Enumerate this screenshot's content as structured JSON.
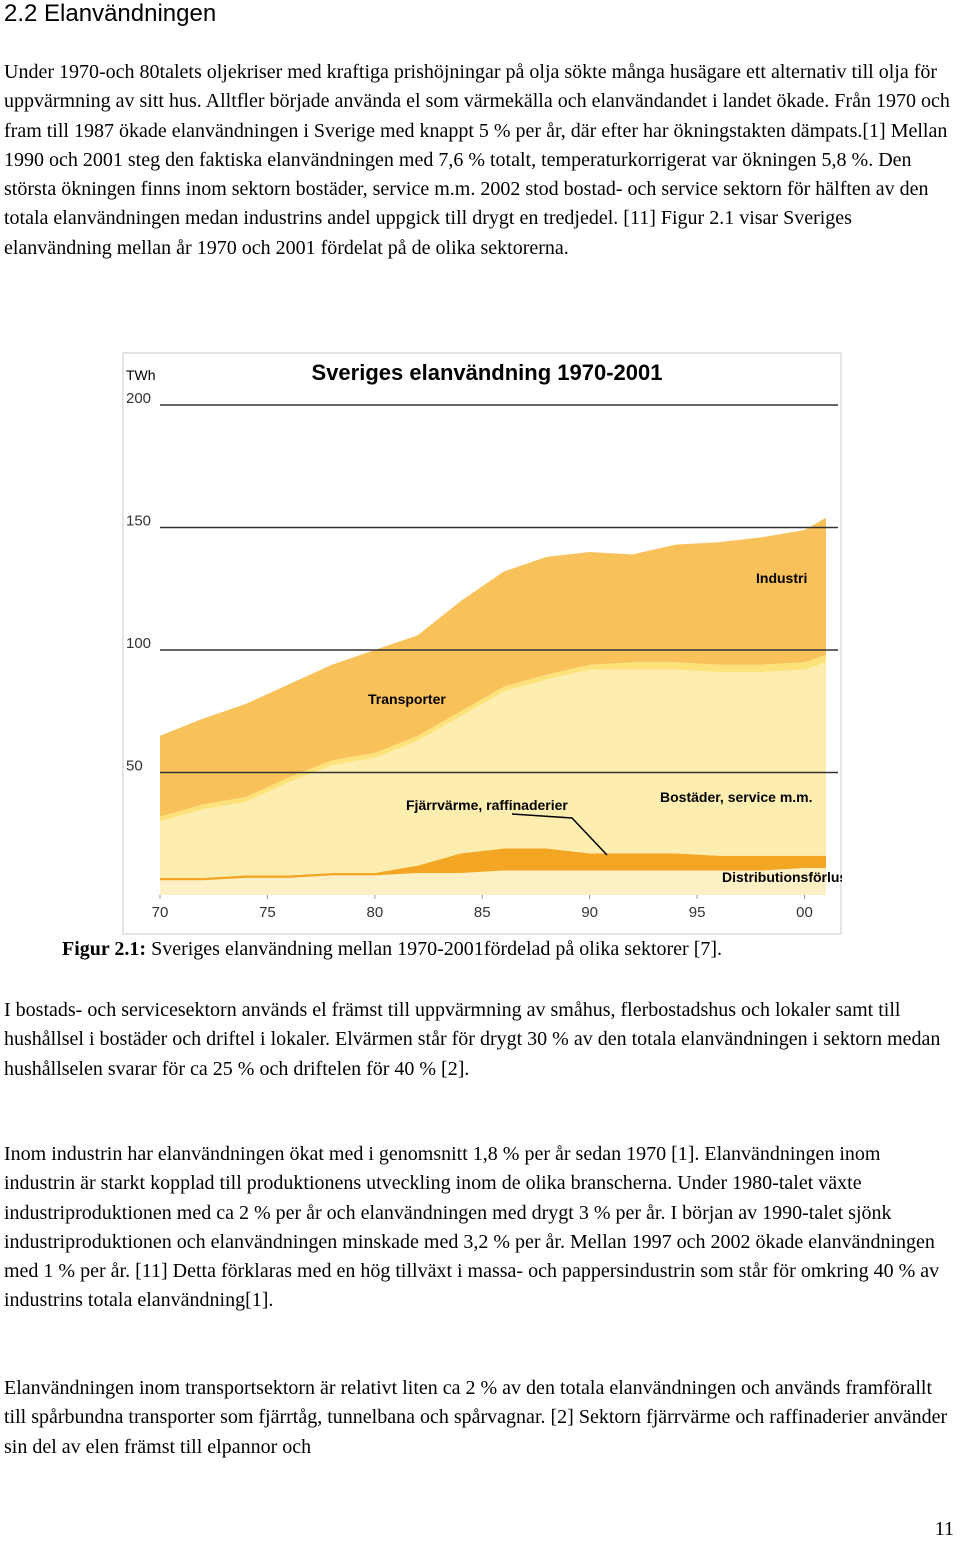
{
  "heading": "2.2 Elanvändningen",
  "paragraphs_before": [
    "Under 1970-och 80talets oljekriser med kraftiga prishöjningar på olja sökte många husägare ett alternativ till olja för uppvärmning av sitt hus. Alltfler började använda el som värmekälla och elanvändandet i landet ökade. Från 1970 och fram till 1987 ökade elanvändningen i Sverige med knappt 5 % per år, där efter har ökningstakten dämpats.[1] Mellan 1990 och 2001 steg den faktiska elanvändningen med 7,6 % totalt, temperaturkorrigerat var ökningen 5,8 %. Den största ökningen finns inom sektorn bostäder, service m.m. 2002 stod bostad- och service sektorn för hälften av den totala elanvändningen medan industrins andel uppgick till drygt en tredjedel. [11] Figur 2.1 visar Sveriges elanvändning mellan år 1970 och 2001 fördelat på de olika sektorerna."
  ],
  "chart_data": {
    "type": "stacked-area",
    "title": "Sveriges elanvändning 1970-2001",
    "y_unit": "TWh",
    "x": [
      1970,
      1972,
      1974,
      1976,
      1978,
      1980,
      1982,
      1984,
      1986,
      1988,
      1990,
      1992,
      1994,
      1996,
      1998,
      2000,
      2001
    ],
    "xlim": [
      1970,
      2001
    ],
    "xticks": [
      {
        "value": 1970,
        "label": "70"
      },
      {
        "value": 1975,
        "label": "75"
      },
      {
        "value": 1980,
        "label": "80"
      },
      {
        "value": 1985,
        "label": "85"
      },
      {
        "value": 1990,
        "label": "90"
      },
      {
        "value": 1995,
        "label": "95"
      },
      {
        "value": 2000,
        "label": "00"
      }
    ],
    "ylim": [
      0,
      200
    ],
    "yticks": [
      50,
      100,
      150,
      200
    ],
    "grid": true,
    "series": [
      {
        "name": "Distributionsförluster",
        "color": "#fdf0c4",
        "values": [
          6,
          6,
          7,
          7,
          8,
          8,
          9,
          9,
          10,
          10,
          10,
          10,
          10,
          10,
          10,
          11,
          11
        ]
      },
      {
        "name": "Fjärrvärme, raffinaderier",
        "color": "#f2a623",
        "values": [
          1,
          1,
          1,
          1,
          1,
          1,
          3,
          8,
          9,
          9,
          7,
          7,
          7,
          6,
          6,
          5,
          5
        ]
      },
      {
        "name": "Bostäder, service m.m.",
        "color": "#fdeeb0",
        "values": [
          23,
          28,
          30,
          38,
          44,
          47,
          51,
          56,
          64,
          69,
          75,
          75,
          75,
          75,
          75,
          76,
          79
        ]
      },
      {
        "name": "Transporter",
        "color": "#fde27a",
        "values": [
          2,
          2,
          2,
          2,
          2,
          2,
          2,
          2,
          2,
          2,
          2,
          3,
          3,
          3,
          3,
          3,
          3
        ]
      },
      {
        "name": "Industri",
        "color": "#f9c15a",
        "values": [
          33,
          35,
          38,
          38,
          39,
          42,
          41,
          45,
          47,
          48,
          46,
          44,
          48,
          50,
          52,
          54,
          56
        ]
      }
    ]
  },
  "caption_label": "Figur 2.1:",
  "caption_text": "Sveriges elanvändning mellan 1970-2001fördelad på olika sektorer [7].",
  "paragraphs_after": [
    "I bostads- och servicesektorn används el främst till uppvärmning av småhus, flerbostadshus och lokaler samt till hushållsel i bostäder och driftel i lokaler. Elvärmen står för drygt 30 % av den totala elanvändningen i sektorn medan hushållselen svarar för ca 25 % och driftelen för 40 % [2].",
    "Inom industrin har elanvändningen ökat med i genomsnitt 1,8 % per år sedan 1970 [1]. Elanvändningen inom industrin är starkt kopplad till produktionens utveckling inom de olika branscherna. Under 1980-talet växte industriproduktionen med ca 2 % per år och elanvändningen med drygt 3 % per år. I början av 1990-talet sjönk industriproduktionen och elanvändningen minskade med 3,2 % per år. Mellan 1997 och 2002 ökade elanvändningen med 1 % per år. [11] Detta förklaras med en hög tillväxt i massa- och pappersindustrin som står för omkring 40 % av industrins totala elanvändning[1].",
    "Elanvändningen inom transportsektorn är relativt liten ca 2 % av den totala elanvändningen och används framförallt till spårbundna transporter som fjärrtåg, tunnelbana och spårvagnar. [2] Sektorn fjärrvärme och raffinaderier använder sin del av elen främst till elpannor och"
  ],
  "page_number": "11"
}
